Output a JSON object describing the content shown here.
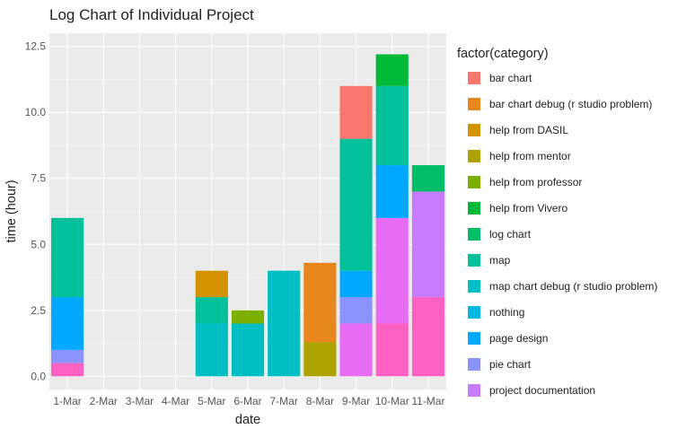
{
  "chart_data": {
    "type": "bar",
    "stacked": true,
    "title": "Log Chart of Individual Project",
    "xlabel": "date",
    "ylabel": "time (hour)",
    "ylim": [
      -0.5,
      13.0
    ],
    "yticks": [
      "0.0",
      "2.5",
      "5.0",
      "7.5",
      "10.0",
      "12.5"
    ],
    "categories": [
      "1-Mar",
      "2-Mar",
      "3-Mar",
      "4-Mar",
      "5-Mar",
      "6-Mar",
      "7-Mar",
      "8-Mar",
      "9-Mar",
      "10-Mar",
      "11-Mar"
    ],
    "legend_title": "factor(category)",
    "legend_position": "right",
    "background": "#ebebeb",
    "grid": true,
    "legend": [
      {
        "name": "bar chart",
        "color": "#f8766d"
      },
      {
        "name": "bar chart debug (r studio problem)",
        "color": "#e7861b"
      },
      {
        "name": "help from DASIL",
        "color": "#d39200"
      },
      {
        "name": "help from mentor",
        "color": "#aea200"
      },
      {
        "name": "help from professor",
        "color": "#7cae00"
      },
      {
        "name": "help from Vivero",
        "color": "#00ba38"
      },
      {
        "name": "log chart",
        "color": "#00be67"
      },
      {
        "name": "map",
        "color": "#00c19a"
      },
      {
        "name": "map chart debug (r studio problem)",
        "color": "#00bfc4"
      },
      {
        "name": "nothing",
        "color": "#00b9e3"
      },
      {
        "name": "page design",
        "color": "#00a9ff"
      },
      {
        "name": "pie chart",
        "color": "#8b93ff"
      },
      {
        "name": "project documentation",
        "color": "#c77cff"
      }
    ],
    "segments": [
      {
        "category": "1-Mar",
        "series": "project documentation (pink)",
        "color": "#ff61c3",
        "base": 0,
        "value": 0.5
      },
      {
        "category": "1-Mar",
        "series": "pie chart",
        "color": "#8b93ff",
        "base": 0.5,
        "value": 0.5
      },
      {
        "category": "1-Mar",
        "series": "page design",
        "color": "#00a9ff",
        "base": 1.0,
        "value": 2.0
      },
      {
        "category": "1-Mar",
        "series": "map",
        "color": "#00c19a",
        "base": 3.0,
        "value": 3.0
      },
      {
        "category": "5-Mar",
        "series": "map chart debug (r studio problem)",
        "color": "#00bfc4",
        "base": 0,
        "value": 2.0
      },
      {
        "category": "5-Mar",
        "series": "map",
        "color": "#00c19a",
        "base": 2.0,
        "value": 1.0
      },
      {
        "category": "5-Mar",
        "series": "help from DASIL",
        "color": "#d39200",
        "base": 3.0,
        "value": 1.0
      },
      {
        "category": "6-Mar",
        "series": "map chart debug (r studio problem)",
        "color": "#00bfc4",
        "base": 0,
        "value": 2.0
      },
      {
        "category": "6-Mar",
        "series": "help from professor",
        "color": "#7cae00",
        "base": 2.0,
        "value": 0.5
      },
      {
        "category": "7-Mar",
        "series": "map chart debug (r studio problem)",
        "color": "#00bfc4",
        "base": 0,
        "value": 4.0
      },
      {
        "category": "8-Mar",
        "series": "help from mentor",
        "color": "#aea200",
        "base": 0,
        "value": 1.3
      },
      {
        "category": "8-Mar",
        "series": "bar chart debug (r studio problem)",
        "color": "#e7861b",
        "base": 1.3,
        "value": 3.0
      },
      {
        "category": "9-Mar",
        "series": "project documentation (magenta)",
        "color": "#e76bf3",
        "base": 0,
        "value": 2.0
      },
      {
        "category": "9-Mar",
        "series": "pie chart",
        "color": "#8b93ff",
        "base": 2.0,
        "value": 1.0
      },
      {
        "category": "9-Mar",
        "series": "page design",
        "color": "#00a9ff",
        "base": 3.0,
        "value": 1.0
      },
      {
        "category": "9-Mar",
        "series": "map",
        "color": "#00c19a",
        "base": 4.0,
        "value": 5.0
      },
      {
        "category": "9-Mar",
        "series": "bar chart",
        "color": "#f8766d",
        "base": 9.0,
        "value": 2.0
      },
      {
        "category": "10-Mar",
        "series": "project documentation (pink)",
        "color": "#ff61c3",
        "base": 0,
        "value": 2.0
      },
      {
        "category": "10-Mar",
        "series": "project documentation (magenta)",
        "color": "#e76bf3",
        "base": 2.0,
        "value": 4.0
      },
      {
        "category": "10-Mar",
        "series": "page design",
        "color": "#00a9ff",
        "base": 6.0,
        "value": 2.0
      },
      {
        "category": "10-Mar",
        "series": "map",
        "color": "#00c19a",
        "base": 8.0,
        "value": 3.0
      },
      {
        "category": "10-Mar",
        "series": "help from Vivero",
        "color": "#00ba38",
        "base": 11.0,
        "value": 1.2
      },
      {
        "category": "11-Mar",
        "series": "project documentation (pink)",
        "color": "#ff61c3",
        "base": 0,
        "value": 3.0
      },
      {
        "category": "11-Mar",
        "series": "project documentation",
        "color": "#c77cff",
        "base": 3.0,
        "value": 4.0
      },
      {
        "category": "11-Mar",
        "series": "log chart",
        "color": "#00be67",
        "base": 7.0,
        "value": 1.0
      }
    ]
  }
}
